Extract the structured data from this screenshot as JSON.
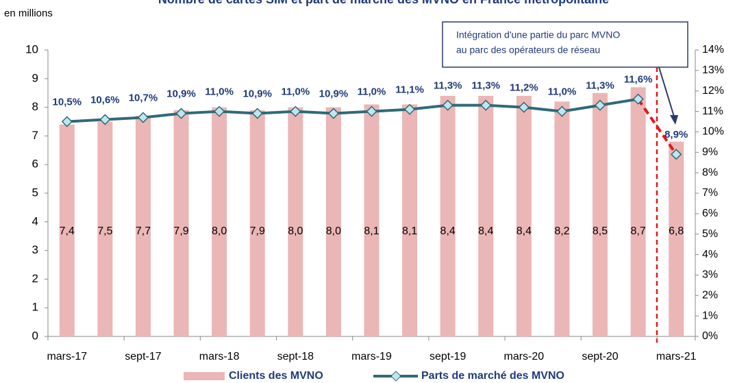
{
  "chart_data": {
    "type": "bar-line",
    "title": "Nombre de cartes SIM et part de marché des MVNO en France métropolitaine",
    "ylabel": "en millions",
    "categories": [
      "mars-17",
      null,
      "sept-17",
      null,
      "mars-18",
      null,
      "sept-18",
      null,
      "mars-19",
      null,
      "sept-19",
      null,
      "mars-20",
      null,
      "sept-20",
      null,
      "mars-21"
    ],
    "series": [
      {
        "name": "Clients des MVNO",
        "type": "bar",
        "color": "#ebb6b6",
        "values": [
          7.4,
          7.5,
          7.7,
          7.9,
          8.0,
          7.9,
          8.0,
          8.0,
          8.1,
          8.1,
          8.4,
          8.4,
          8.4,
          8.2,
          8.5,
          8.7,
          6.8
        ],
        "value_labels": [
          "7,4",
          "7,5",
          "7,7",
          "7,9",
          "8,0",
          "7,9",
          "8,0",
          "8,0",
          "8,1",
          "8,1",
          "8,4",
          "8,4",
          "8,4",
          "8,2",
          "8,5",
          "8,7",
          "6,8"
        ]
      },
      {
        "name": "Parts de marché des MVNO",
        "type": "line",
        "axis": "y2",
        "color": "#2e6a78",
        "values": [
          10.5,
          10.6,
          10.7,
          10.9,
          11.0,
          10.9,
          11.0,
          10.9,
          11.0,
          11.1,
          11.3,
          11.3,
          11.2,
          11.0,
          11.3,
          11.6,
          8.9
        ],
        "value_labels": [
          "10,5%",
          "10,6%",
          "10,7%",
          "10,9%",
          "11,0%",
          "10,9%",
          "11,0%",
          "10,9%",
          "11,0%",
          "11,1%",
          "11,3%",
          "11,3%",
          "11,2%",
          "11,0%",
          "11,3%",
          "11,6%",
          "8,9%"
        ]
      }
    ],
    "ylim": [
      0,
      10
    ],
    "yticks": [
      0,
      1,
      2,
      3,
      4,
      5,
      6,
      7,
      8,
      9,
      10
    ],
    "y2lim": [
      0,
      14
    ],
    "y2ticks": [
      {
        "value": 0,
        "label": "0%"
      },
      {
        "value": 1,
        "label": "1%"
      },
      {
        "value": 2,
        "label": "2%"
      },
      {
        "value": 3,
        "label": "3%"
      },
      {
        "value": 4,
        "label": "4%"
      },
      {
        "value": 5,
        "label": "5%"
      },
      {
        "value": 6,
        "label": "6%"
      },
      {
        "value": 7,
        "label": "7%"
      },
      {
        "value": 8,
        "label": "8%"
      },
      {
        "value": 9,
        "label": "9%"
      },
      {
        "value": 10,
        "label": "10%"
      },
      {
        "value": 11,
        "label": "11%"
      },
      {
        "value": 12,
        "label": "12%"
      },
      {
        "value": 13,
        "label": "13%"
      },
      {
        "value": 14,
        "label": "14%"
      }
    ],
    "annotation": [
      "Intégration d'une partie du parc MVNO",
      "au parc des opérateurs de réseau"
    ],
    "legend": "bottom"
  }
}
